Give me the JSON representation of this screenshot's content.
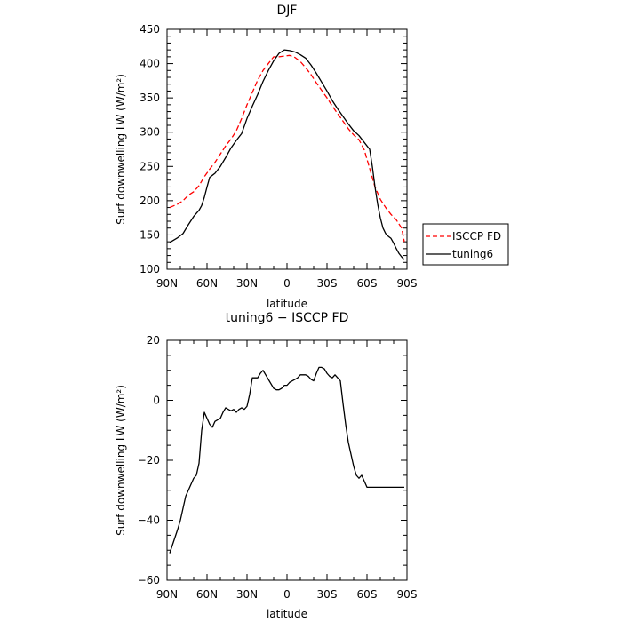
{
  "chart_data": [
    {
      "type": "line",
      "title": "DJF",
      "xlabel": "latitude",
      "ylabel": "Surf downwelling LW (W/m²)",
      "xlim": [
        90,
        -90
      ],
      "ylim": [
        100,
        450
      ],
      "xticks": [
        90,
        60,
        30,
        0,
        -30,
        -60,
        -90
      ],
      "xtick_labels": [
        "90N",
        "60N",
        "30N",
        "0",
        "30S",
        "60S",
        "90S"
      ],
      "yticks": [
        100,
        150,
        200,
        250,
        300,
        350,
        400,
        450
      ],
      "legend_placement": "right",
      "series": [
        {
          "name": "ISCCP FD",
          "color": "#ff0000",
          "style": "dashed",
          "x": [
            88,
            82,
            78,
            74,
            70,
            66,
            62,
            58,
            54,
            50,
            46,
            42,
            38,
            34,
            30,
            26,
            22,
            18,
            14,
            10,
            6,
            2,
            -2,
            -6,
            -10,
            -14,
            -18,
            -22,
            -26,
            -30,
            -34,
            -38,
            -42,
            -46,
            -50,
            -54,
            -58,
            -62,
            -66,
            -70,
            -74,
            -78,
            -82,
            -86,
            -88
          ],
          "y": [
            190,
            195,
            200,
            208,
            213,
            222,
            235,
            246,
            256,
            268,
            280,
            290,
            302,
            320,
            340,
            358,
            376,
            390,
            400,
            410,
            410,
            411,
            412,
            409,
            403,
            394,
            384,
            372,
            361,
            350,
            338,
            327,
            316,
            305,
            296,
            289,
            274,
            247,
            220,
            202,
            190,
            180,
            172,
            160,
            140
          ]
        },
        {
          "name": "tuning6",
          "color": "#000000",
          "style": "solid",
          "x": [
            88,
            82,
            78,
            74,
            70,
            66,
            64,
            62,
            60,
            58,
            56,
            54,
            50,
            46,
            42,
            38,
            34,
            30,
            26,
            22,
            18,
            14,
            10,
            6,
            2,
            -2,
            -6,
            -10,
            -14,
            -18,
            -22,
            -26,
            -30,
            -34,
            -38,
            -42,
            -46,
            -50,
            -54,
            -58,
            -62,
            -64,
            -66,
            -68,
            -70,
            -72,
            -74,
            -76,
            -78,
            -80,
            -82,
            -84,
            -86,
            -88
          ],
          "y": [
            139,
            146,
            152,
            165,
            177,
            186,
            193,
            205,
            220,
            234,
            237,
            240,
            250,
            263,
            277,
            288,
            298,
            320,
            338,
            355,
            374,
            390,
            404,
            415,
            420,
            419,
            417,
            413,
            408,
            398,
            386,
            373,
            360,
            346,
            334,
            323,
            312,
            302,
            295,
            285,
            275,
            250,
            220,
            195,
            175,
            160,
            152,
            148,
            145,
            138,
            130,
            123,
            118,
            114
          ]
        }
      ]
    },
    {
      "type": "line",
      "title": "tuning6 − ISCCP FD",
      "xlabel": "latitude",
      "ylabel": "Surf downwelling LW (W/m²)",
      "xlim": [
        90,
        -90
      ],
      "ylim": [
        -60,
        20
      ],
      "xticks": [
        90,
        60,
        30,
        0,
        -30,
        -60,
        -90
      ],
      "xtick_labels": [
        "90N",
        "60N",
        "30N",
        "0",
        "30S",
        "60S",
        "90S"
      ],
      "yticks": [
        -60,
        -40,
        -20,
        0,
        20
      ],
      "ytick_labels": [
        "−60",
        "−40",
        "−20",
        "0",
        "20"
      ],
      "series": [
        {
          "color": "#000000",
          "style": "solid",
          "x": [
            88,
            85,
            82,
            80,
            78,
            76,
            74,
            72,
            70,
            68,
            66,
            64,
            62,
            60,
            58,
            56,
            54,
            52,
            50,
            48,
            46,
            44,
            42,
            40,
            38,
            36,
            34,
            32,
            30,
            28,
            26,
            24,
            22,
            20,
            18,
            16,
            14,
            12,
            10,
            8,
            6,
            4,
            2,
            0,
            -2,
            -4,
            -6,
            -8,
            -10,
            -12,
            -14,
            -16,
            -18,
            -20,
            -22,
            -24,
            -26,
            -28,
            -30,
            -32,
            -34,
            -36,
            -38,
            -40,
            -42,
            -44,
            -46,
            -48,
            -50,
            -52,
            -54,
            -56,
            -58,
            -60,
            -62,
            -64,
            -66,
            -68,
            -70,
            -72,
            -74,
            -76,
            -78,
            -80,
            -82,
            -84,
            -86,
            -88
          ],
          "y": [
            -51,
            -47,
            -43,
            -40,
            -36,
            -32,
            -30,
            -28,
            -26,
            -25,
            -21,
            -10,
            -4,
            -6,
            -8,
            -9,
            -7,
            -6.5,
            -6,
            -4,
            -2.5,
            -3,
            -3.5,
            -3,
            -4,
            -3,
            -2.5,
            -3,
            -2,
            2,
            7.5,
            7.5,
            7.5,
            9,
            10,
            8.5,
            7,
            5.5,
            4,
            3.5,
            3.5,
            4,
            5,
            5,
            6,
            6.5,
            7,
            7.5,
            8.5,
            8.5,
            8.5,
            8,
            7,
            6.5,
            9,
            11,
            11,
            10.5,
            9,
            8,
            7.5,
            8.5,
            7.5,
            6.5,
            -1,
            -8,
            -14,
            -18,
            -22,
            -25,
            -26,
            -25,
            -27,
            -29,
            -29,
            -29,
            -29,
            -29,
            -29,
            -29,
            -29,
            -29,
            -29,
            -29,
            -29,
            -29,
            -29,
            -29
          ]
        }
      ]
    }
  ]
}
